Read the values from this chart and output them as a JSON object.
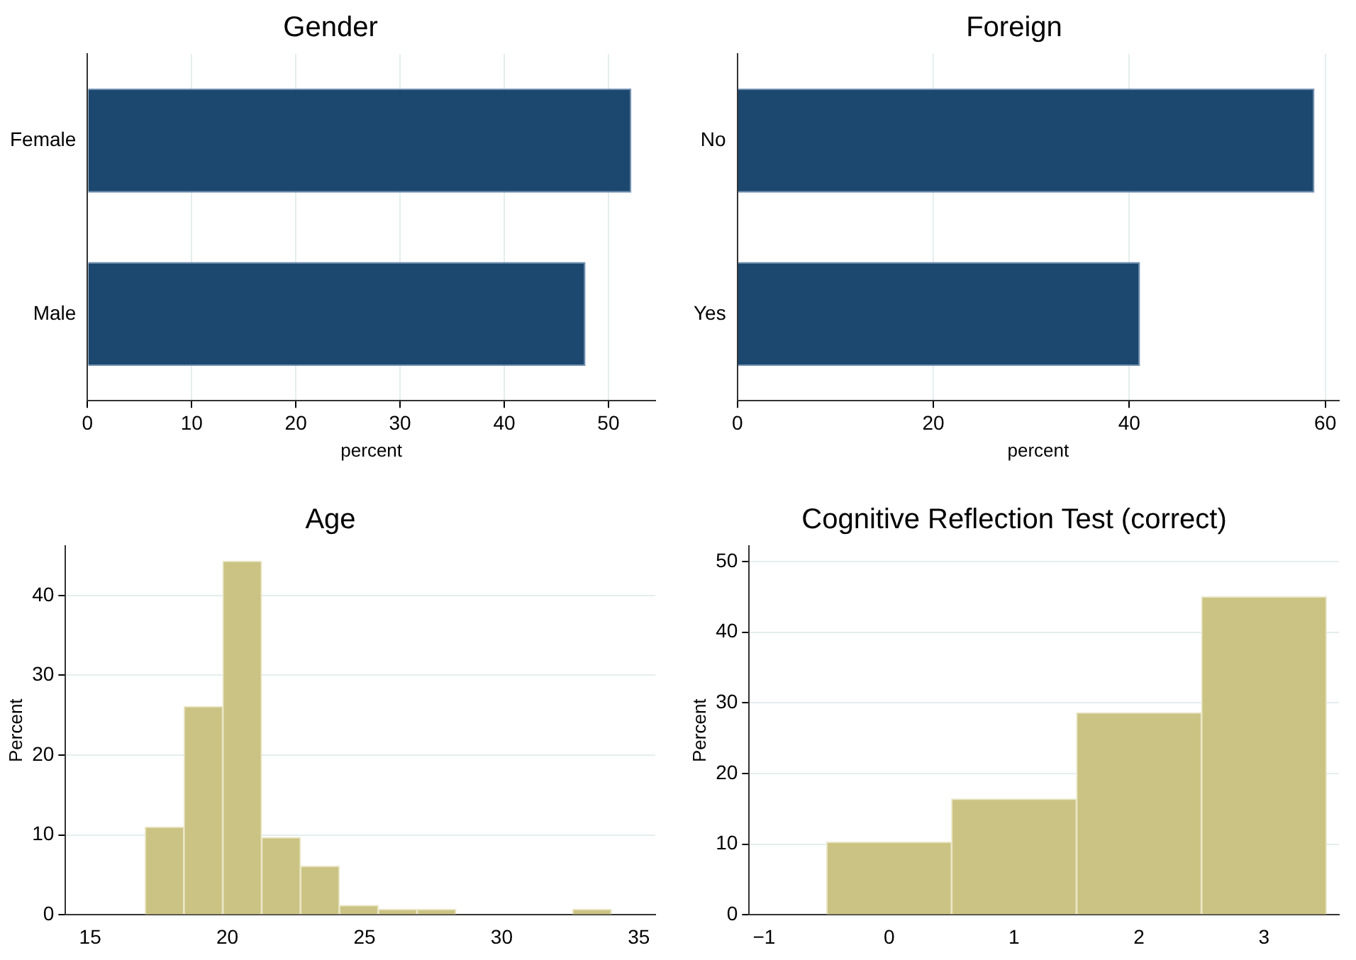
{
  "chart_data": [
    {
      "type": "bar",
      "orientation": "horizontal",
      "title": "Gender",
      "xlabel": "percent",
      "categories": [
        "Female",
        "Male"
      ],
      "values": [
        52.2,
        47.8
      ],
      "color": "#1c476e",
      "xlim": [
        0,
        54.5
      ],
      "xticks": [
        0,
        10,
        20,
        30,
        40,
        50
      ],
      "grid": "x"
    },
    {
      "type": "bar",
      "orientation": "horizontal",
      "title": "Foreign",
      "xlabel": "percent",
      "categories": [
        "No",
        "Yes"
      ],
      "values": [
        58.9,
        41.1
      ],
      "color": "#1c476e",
      "xlim": [
        0,
        61.4
      ],
      "xticks": [
        0,
        20,
        40,
        60
      ],
      "grid": "x"
    },
    {
      "type": "histogram",
      "title": "Age",
      "ylabel": "Percent",
      "bins": [
        17,
        18.4167,
        19.8333,
        21.25,
        22.6667,
        24.0833,
        25.5,
        26.9167,
        28.3333,
        29.75,
        31.1667,
        32.5833,
        34
      ],
      "values": [
        11,
        26.1,
        44.3,
        9.7,
        6.1,
        1.2,
        0.7,
        0.7,
        0,
        0,
        0,
        0.7
      ],
      "color": "#cbc383",
      "xlim": [
        14.1,
        35.6
      ],
      "xticks": [
        15,
        20,
        25,
        30,
        35
      ],
      "ylim": [
        0,
        46.2
      ],
      "yticks": [
        0,
        10,
        20,
        30,
        40
      ],
      "grid": "y"
    },
    {
      "type": "histogram",
      "title": "Cognitive Reflection Test (correct)",
      "ylabel": "Percent",
      "bins": [
        -0.5,
        0.5,
        1.5,
        2.5,
        3.5
      ],
      "values": [
        10.3,
        16.4,
        28.6,
        45
      ],
      "color": "#cbc383",
      "xlim": [
        -1.12,
        3.6
      ],
      "xticks": [
        -1,
        0,
        1,
        2,
        3
      ],
      "ylim": [
        0,
        52.2
      ],
      "yticks": [
        0,
        10,
        20,
        30,
        40,
        50
      ],
      "grid": "y"
    }
  ]
}
